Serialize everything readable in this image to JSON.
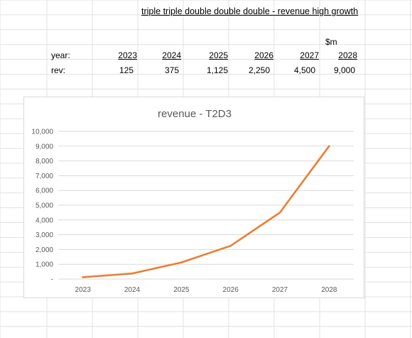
{
  "sheet": {
    "title": "triple triple double double double - revenue high growth",
    "unit": "$m",
    "row_labels": {
      "year": "year:",
      "rev": "rev:"
    },
    "years": [
      "2023",
      "2024",
      "2025",
      "2026",
      "2027",
      "2028"
    ],
    "revenue": [
      "125",
      "375",
      "1,125",
      "2,250",
      "4,500",
      "9,000"
    ]
  },
  "chart_data": {
    "type": "line",
    "title": "revenue - T2D3",
    "categories": [
      "2023",
      "2024",
      "2025",
      "2026",
      "2027",
      "2028"
    ],
    "series": [
      {
        "values": [
          125,
          375,
          1125,
          2250,
          4500,
          9000
        ],
        "color": "#ED7D31"
      }
    ],
    "ylim": [
      0,
      10000
    ],
    "yticks": [
      0,
      1000,
      2000,
      3000,
      4000,
      5000,
      6000,
      7000,
      8000,
      9000,
      10000
    ],
    "ytick_labels": [
      "-",
      "1,000",
      "2,000",
      "3,000",
      "4,000",
      "5,000",
      "6,000",
      "7,000",
      "8,000",
      "9,000",
      "10,000"
    ],
    "grid": true,
    "legend": "none",
    "colors": {
      "gridline": "#d9d9d9",
      "axis_text": "#595959",
      "title_text": "#595959"
    }
  }
}
